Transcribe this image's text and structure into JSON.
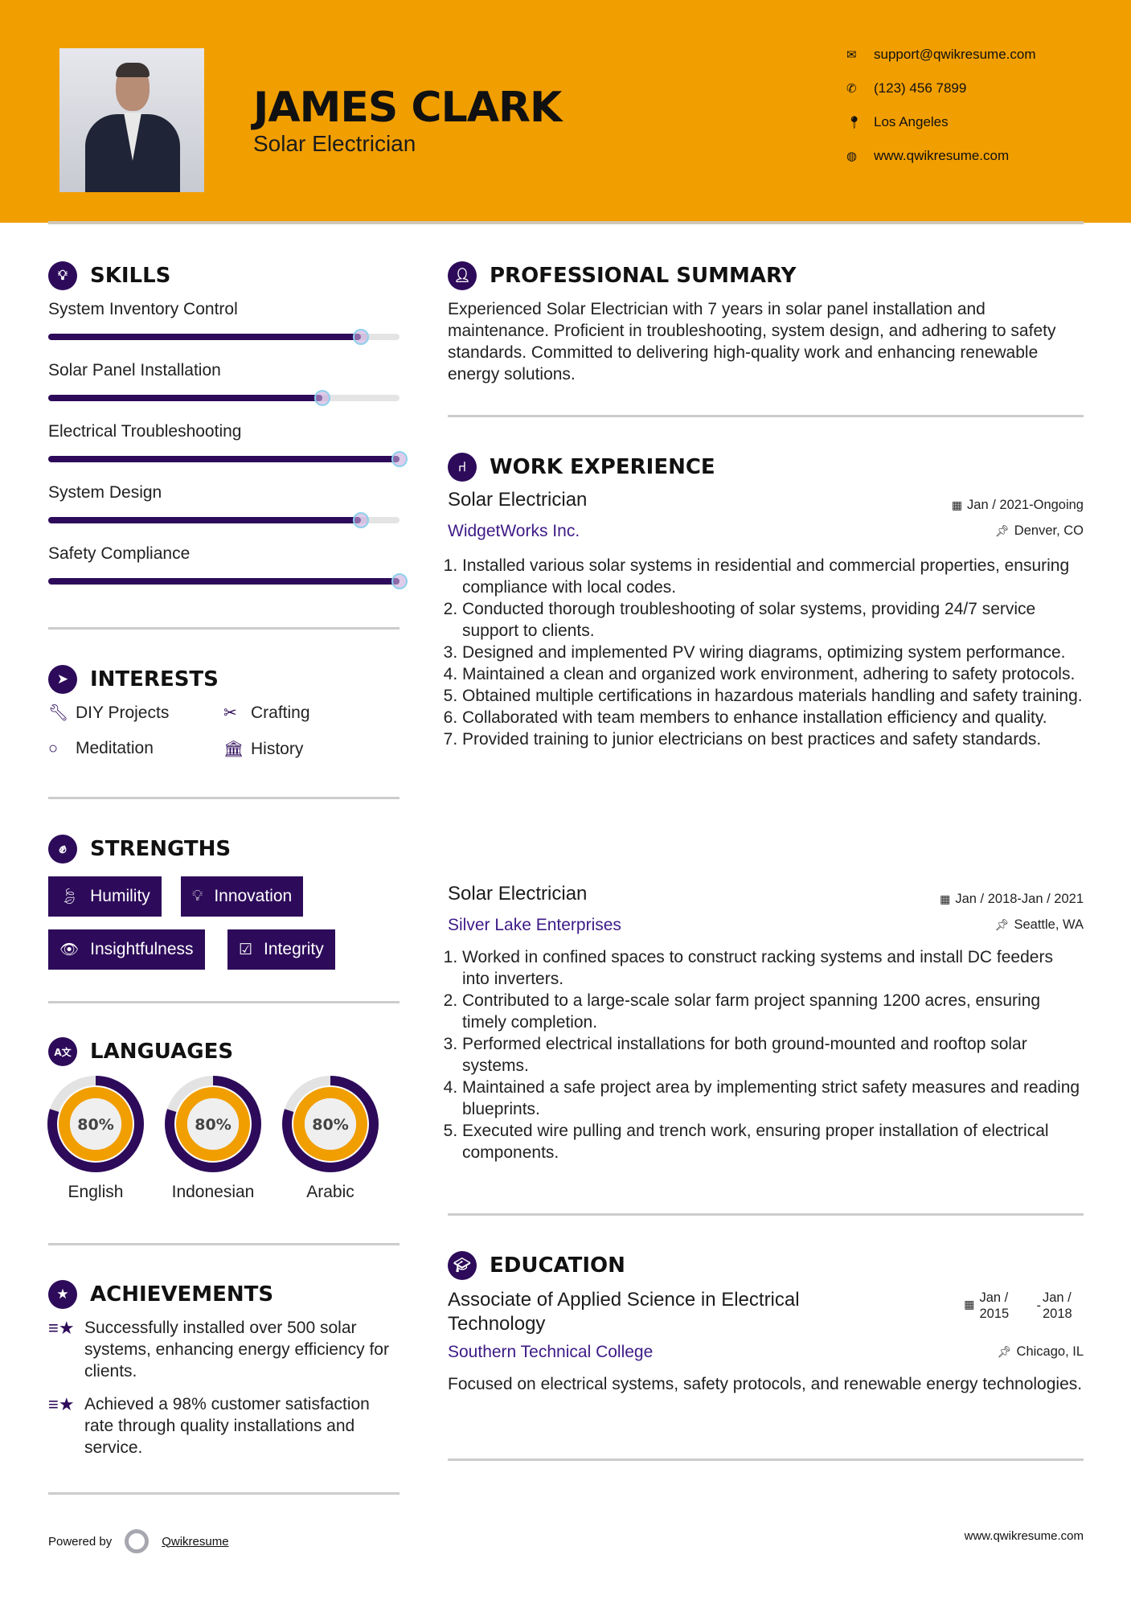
{
  "header": {
    "name": "JAMES CLARK",
    "title": "Solar Electrician",
    "contacts": [
      {
        "icon": "envelope-icon",
        "text": "support@qwikresume.com"
      },
      {
        "icon": "phone-icon",
        "text": "(123) 456 7899"
      },
      {
        "icon": "map-marker-icon",
        "text": "Los Angeles"
      },
      {
        "icon": "globe-icon",
        "text": "www.qwikresume.com"
      }
    ]
  },
  "colors": {
    "header_bg": "#f19e00",
    "accent": "#2d0b5a",
    "company": "#3d1a86"
  },
  "skills": {
    "heading": "SKILLS",
    "items": [
      {
        "label": "System Inventory Control",
        "level": 89
      },
      {
        "label": "Solar Panel Installation",
        "level": 78
      },
      {
        "label": "Electrical Troubleshooting",
        "level": 100
      },
      {
        "label": "System Design",
        "level": 89
      },
      {
        "label": "Safety Compliance",
        "level": 100
      }
    ]
  },
  "interests": {
    "heading": "INTERESTS",
    "items": [
      {
        "icon": "wrench-icon",
        "label": "DIY Projects"
      },
      {
        "icon": "scissors-icon",
        "label": "Crafting"
      },
      {
        "icon": "circle-icon",
        "label": "Meditation"
      },
      {
        "icon": "bank-icon",
        "label": "History"
      }
    ]
  },
  "strengths": {
    "heading": "STRENGTHS",
    "items": [
      {
        "icon": "leaf-icon",
        "label": "Humility"
      },
      {
        "icon": "lightbulb-icon",
        "label": "Innovation"
      },
      {
        "icon": "eye-icon",
        "label": "Insightfulness"
      },
      {
        "icon": "check-square-icon",
        "label": "Integrity"
      }
    ]
  },
  "languages": {
    "heading": "LANGUAGES",
    "items": [
      {
        "label": "English",
        "percent": 80,
        "text": "80%"
      },
      {
        "label": "Indonesian",
        "percent": 80,
        "text": "80%"
      },
      {
        "label": "Arabic",
        "percent": 80,
        "text": "80%"
      }
    ]
  },
  "achievements": {
    "heading": "ACHIEVEMENTS",
    "items": [
      "Successfully installed over 500 solar systems, enhancing energy efficiency for clients.",
      "Achieved a 98% customer satisfaction rate through quality installations and service."
    ]
  },
  "summary": {
    "heading": "PROFESSIONAL SUMMARY",
    "text": "Experienced Solar Electrician with 7 years in solar panel installation and maintenance. Proficient in troubleshooting, system design, and adhering to safety standards. Committed to delivering high-quality work and enhancing renewable energy solutions."
  },
  "experience": {
    "heading": "WORK EXPERIENCE",
    "jobs": [
      {
        "title": "Solar Electrician",
        "company": "WidgetWorks Inc.",
        "dates": "Jan / 2021-Ongoing",
        "location": "Denver, CO",
        "duties": [
          "Installed various solar systems in residential and commercial properties, ensuring compliance with local codes.",
          "Conducted thorough troubleshooting of solar systems, providing 24/7 service support to clients.",
          "Designed and implemented PV wiring diagrams, optimizing system performance.",
          "Maintained a clean and organized work environment, adhering to safety protocols.",
          "Obtained multiple certifications in hazardous materials handling and safety training.",
          "Collaborated with team members to enhance installation efficiency and quality.",
          "Provided training to junior electricians on best practices and safety standards."
        ]
      },
      {
        "title": "Solar Electrician",
        "company": "Silver Lake Enterprises",
        "dates": "Jan / 2018-Jan / 2021",
        "location": "Seattle, WA",
        "duties": [
          "Worked in confined spaces to construct racking systems and install DC feeders into inverters.",
          "Contributed to a large-scale solar farm project spanning 1200 acres, ensuring timely completion.",
          "Performed electrical installations for both ground-mounted and rooftop solar systems.",
          "Maintained a safe project area by implementing strict safety measures and reading blueprints.",
          "Executed wire pulling and trench work, ensuring proper installation of electrical components."
        ]
      }
    ]
  },
  "education": {
    "heading": "EDUCATION",
    "degree": "Associate of Applied Science in Electrical Technology",
    "school": "Southern Technical College",
    "start": "Jan / 2015",
    "end": "Jan / 2018",
    "separator": "-",
    "location": "Chicago, IL",
    "description": "Focused on electrical systems, safety protocols, and renewable energy technologies."
  },
  "footer": {
    "powered_by": "Powered by",
    "brand": "Qwikresume",
    "website": "www.qwikresume.com"
  }
}
